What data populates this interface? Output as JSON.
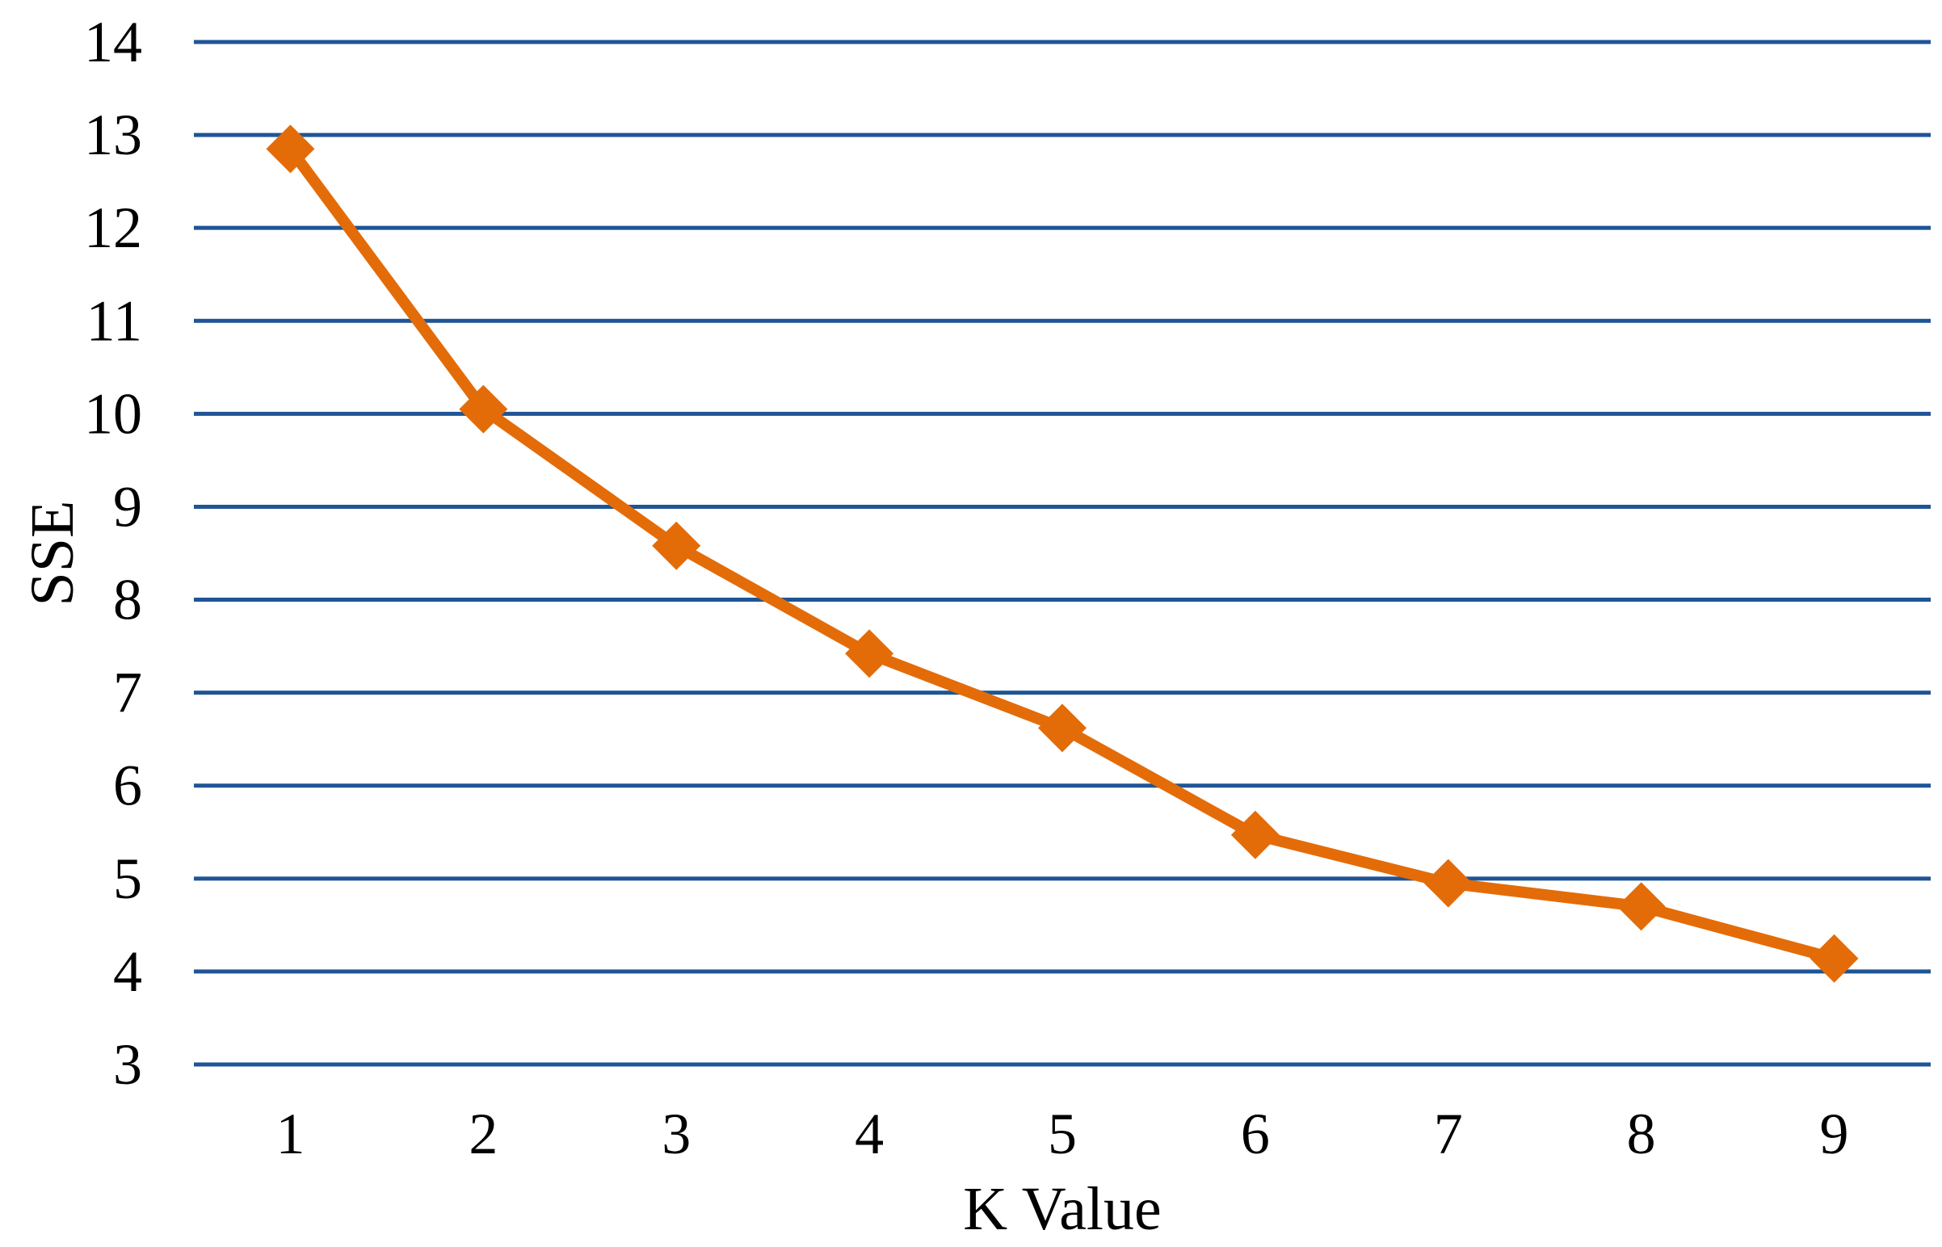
{
  "chart_data": {
    "type": "line",
    "title": "",
    "xlabel": "K Value",
    "ylabel": "SSE",
    "x": [
      1,
      2,
      3,
      4,
      5,
      6,
      7,
      8,
      9
    ],
    "series": [
      {
        "values": [
          12.85,
          10.05,
          8.58,
          7.42,
          6.62,
          5.47,
          4.95,
          4.7,
          4.14
        ]
      }
    ],
    "ylim": [
      3,
      14
    ],
    "yticks": [
      3,
      4,
      5,
      6,
      7,
      8,
      9,
      10,
      11,
      12,
      13,
      14
    ],
    "grid": "horizontal",
    "legend": "none",
    "marker": "diamond",
    "colors": {
      "line": "#E36C09",
      "grid": "#1F5596"
    }
  }
}
